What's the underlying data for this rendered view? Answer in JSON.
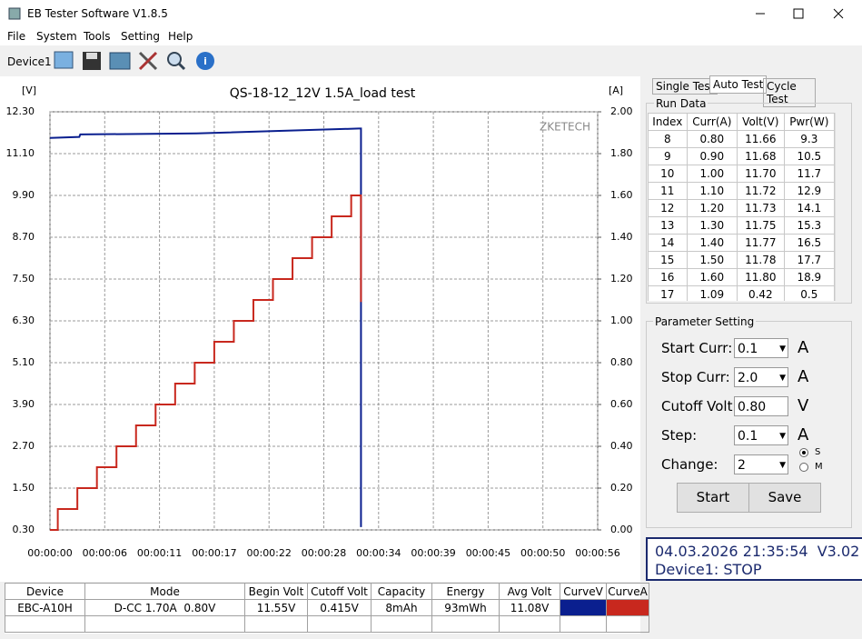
{
  "window": {
    "title": "EB Tester Software V1.8.5"
  },
  "menu": [
    "File",
    "System",
    "Tools",
    "Setting",
    "Help"
  ],
  "toolbar": {
    "device": "Device1"
  },
  "chart_data": {
    "type": "line",
    "title": "QS-18-12_12V 1.5A_load test",
    "y_label": "[V]",
    "y2_label": "[A]",
    "watermark": "ZKETECH",
    "xlim": [
      0,
      56
    ],
    "xticks": [
      {
        "value": 0,
        "label": "00:00:00"
      },
      {
        "value": 5.6,
        "label": "00:00:06"
      },
      {
        "value": 11.2,
        "label": "00:00:11"
      },
      {
        "value": 16.8,
        "label": "00:00:17"
      },
      {
        "value": 22.4,
        "label": "00:00:22"
      },
      {
        "value": 28,
        "label": "00:00:28"
      },
      {
        "value": 33.6,
        "label": "00:00:34"
      },
      {
        "value": 39.2,
        "label": "00:00:39"
      },
      {
        "value": 44.8,
        "label": "00:00:45"
      },
      {
        "value": 50.4,
        "label": "00:00:50"
      },
      {
        "value": 56,
        "label": "00:00:56"
      }
    ],
    "ylim": [
      0.3,
      12.3
    ],
    "yticks": [
      {
        "value": 0.3,
        "label": "0.30"
      },
      {
        "value": 1.5,
        "label": "1.50"
      },
      {
        "value": 2.7,
        "label": "2.70"
      },
      {
        "value": 3.9,
        "label": "3.90"
      },
      {
        "value": 5.1,
        "label": "5.10"
      },
      {
        "value": 6.3,
        "label": "6.30"
      },
      {
        "value": 7.5,
        "label": "7.50"
      },
      {
        "value": 8.7,
        "label": "8.70"
      },
      {
        "value": 9.9,
        "label": "9.90"
      },
      {
        "value": 11.1,
        "label": "11.10"
      },
      {
        "value": 12.3,
        "label": "12.30"
      }
    ],
    "y2lim": [
      0,
      2
    ],
    "y2ticks": [
      {
        "value": 0,
        "label": "0.00"
      },
      {
        "value": 0.2,
        "label": "0.20"
      },
      {
        "value": 0.4,
        "label": "0.40"
      },
      {
        "value": 0.6,
        "label": "0.60"
      },
      {
        "value": 0.8,
        "label": "0.80"
      },
      {
        "value": 1,
        "label": "1.00"
      },
      {
        "value": 1.2,
        "label": "1.20"
      },
      {
        "value": 1.4,
        "label": "1.40"
      },
      {
        "value": 1.6,
        "label": "1.60"
      },
      {
        "value": 1.8,
        "label": "1.80"
      },
      {
        "value": 2,
        "label": "2.00"
      }
    ],
    "grid": true,
    "series": [
      {
        "name": "CurveV",
        "color": "#0a1f8f",
        "x": [
          0,
          3,
          3.1,
          15,
          31.6,
          31.8,
          31.8
        ],
        "values": [
          11.55,
          11.58,
          11.65,
          11.68,
          11.82,
          11.82,
          0.38
        ]
      },
      {
        "name": "CurveA",
        "color": "#c8281e",
        "axis": "y2",
        "x": [
          0,
          0.8,
          0.8,
          2.8,
          2.8,
          4.8,
          4.8,
          6.8,
          6.8,
          8.8,
          8.8,
          10.8,
          10.8,
          12.8,
          12.8,
          14.8,
          14.8,
          16.8,
          16.8,
          18.8,
          18.8,
          20.8,
          20.8,
          22.8,
          22.8,
          24.8,
          24.8,
          26.8,
          26.8,
          28.8,
          28.8,
          30.8,
          30.8,
          31.8,
          31.8
        ],
        "values": [
          0,
          0,
          0.1,
          0.1,
          0.2,
          0.2,
          0.3,
          0.3,
          0.4,
          0.4,
          0.5,
          0.5,
          0.6,
          0.6,
          0.7,
          0.7,
          0.8,
          0.8,
          0.9,
          0.9,
          1.0,
          1.0,
          1.1,
          1.1,
          1.2,
          1.2,
          1.3,
          1.3,
          1.4,
          1.4,
          1.5,
          1.5,
          1.6,
          1.6,
          1.09
        ]
      }
    ]
  },
  "tabs": [
    "Single Test",
    "Auto Test",
    "Cycle Test"
  ],
  "run_data": {
    "title": "Run Data",
    "columns": [
      "Index",
      "Curr(A)",
      "Volt(V)",
      "Pwr(W)"
    ],
    "rows": [
      [
        "8",
        "0.80",
        "11.66",
        "9.3"
      ],
      [
        "9",
        "0.90",
        "11.68",
        "10.5"
      ],
      [
        "10",
        "1.00",
        "11.70",
        "11.7"
      ],
      [
        "11",
        "1.10",
        "11.72",
        "12.9"
      ],
      [
        "12",
        "1.20",
        "11.73",
        "14.1"
      ],
      [
        "13",
        "1.30",
        "11.75",
        "15.3"
      ],
      [
        "14",
        "1.40",
        "11.77",
        "16.5"
      ],
      [
        "15",
        "1.50",
        "11.78",
        "17.7"
      ],
      [
        "16",
        "1.60",
        "11.80",
        "18.9"
      ],
      [
        "17",
        "1.09",
        "0.42",
        "0.5"
      ]
    ]
  },
  "parameters": {
    "title": "Parameter Setting",
    "fields": [
      {
        "label": "Start Curr:",
        "value": "0.1",
        "unit": "A"
      },
      {
        "label": "Stop Curr:",
        "value": "2.0",
        "unit": "A"
      },
      {
        "label": "Cutoff Volt:",
        "value": "0.80",
        "unit": "V"
      },
      {
        "label": "Step:",
        "value": "0.1",
        "unit": "A"
      },
      {
        "label": "Change:",
        "value": "2"
      }
    ],
    "radio": [
      "S",
      "M"
    ],
    "buttons": [
      "Start",
      "Save"
    ]
  },
  "status": {
    "line1": "04.03.2026 21:35:54  V3.02",
    "line2": "Device1: STOP"
  },
  "summary": {
    "columns": [
      "Device",
      "Mode",
      "Begin Volt",
      "Cutoff Volt",
      "Capacity",
      "Energy",
      "Avg Volt",
      "CurveV",
      "CurveA"
    ],
    "rows": [
      [
        "EBC-A10H",
        "D-CC 1.70A  0.80V",
        "11.55V",
        "0.415V",
        "8mAh",
        "93mWh",
        "11.08V"
      ]
    ]
  }
}
